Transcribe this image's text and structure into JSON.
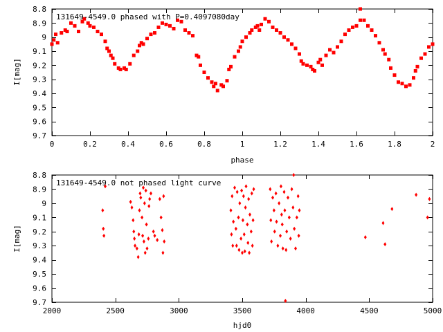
{
  "chart_data": [
    {
      "type": "scatter",
      "title": "131649-4549.0 phased with P=0.4097080day",
      "xlabel": "phase",
      "ylabel": "I[mag]",
      "xlim": [
        0,
        2
      ],
      "ylim": [
        8.8,
        9.7
      ],
      "y_inverted": true,
      "x_ticks": [
        "0",
        "0.2",
        "0.4",
        "0.6",
        "0.8",
        "1",
        "1.2",
        "1.4",
        "1.6",
        "1.8",
        "2"
      ],
      "y_ticks": [
        "8.8",
        "8.9",
        "9",
        "9.1",
        "9.2",
        "9.3",
        "9.4",
        "9.5",
        "9.6",
        "9.7"
      ],
      "marker_color": "#ff0000",
      "points": [
        [
          0.0,
          9.05
        ],
        [
          0.01,
          9.02
        ],
        [
          0.02,
          8.98
        ],
        [
          0.03,
          9.04
        ],
        [
          0.05,
          8.97
        ],
        [
          0.07,
          8.95
        ],
        [
          0.08,
          8.96
        ],
        [
          0.1,
          8.9
        ],
        [
          0.12,
          8.92
        ],
        [
          0.14,
          8.96
        ],
        [
          0.16,
          8.89
        ],
        [
          0.17,
          8.87
        ],
        [
          0.19,
          8.9
        ],
        [
          0.2,
          8.92
        ],
        [
          0.22,
          8.93
        ],
        [
          0.24,
          8.96
        ],
        [
          0.26,
          8.98
        ],
        [
          0.28,
          9.03
        ],
        [
          0.29,
          9.08
        ],
        [
          0.3,
          9.1
        ],
        [
          0.31,
          9.13
        ],
        [
          0.32,
          9.15
        ],
        [
          0.33,
          9.19
        ],
        [
          0.35,
          9.22
        ],
        [
          0.36,
          9.23
        ],
        [
          0.38,
          9.22
        ],
        [
          0.39,
          9.23
        ],
        [
          0.41,
          9.19
        ],
        [
          0.43,
          9.13
        ],
        [
          0.45,
          9.1
        ],
        [
          0.46,
          9.06
        ],
        [
          0.47,
          9.04
        ],
        [
          0.48,
          9.05
        ],
        [
          0.5,
          9.01
        ],
        [
          0.52,
          8.98
        ],
        [
          0.54,
          8.97
        ],
        [
          0.56,
          8.93
        ],
        [
          0.58,
          8.9
        ],
        [
          0.6,
          8.91
        ],
        [
          0.62,
          8.92
        ],
        [
          0.64,
          8.94
        ],
        [
          0.66,
          8.88
        ],
        [
          0.68,
          8.89
        ],
        [
          0.7,
          8.95
        ],
        [
          0.72,
          8.97
        ],
        [
          0.74,
          8.99
        ],
        [
          0.76,
          9.13
        ],
        [
          0.77,
          9.14
        ],
        [
          0.78,
          9.2
        ],
        [
          0.8,
          9.25
        ],
        [
          0.82,
          9.29
        ],
        [
          0.84,
          9.32
        ],
        [
          0.85,
          9.35
        ],
        [
          0.86,
          9.33
        ],
        [
          0.87,
          9.38
        ],
        [
          0.89,
          9.34
        ],
        [
          0.9,
          9.35
        ],
        [
          0.92,
          9.31
        ],
        [
          0.93,
          9.23
        ],
        [
          0.94,
          9.21
        ],
        [
          0.96,
          9.14
        ],
        [
          0.98,
          9.1
        ],
        [
          0.99,
          9.07
        ],
        [
          1.0,
          9.03
        ],
        [
          1.02,
          9.0
        ],
        [
          1.04,
          8.97
        ],
        [
          1.05,
          8.95
        ],
        [
          1.07,
          8.93
        ],
        [
          1.08,
          8.92
        ],
        [
          1.09,
          8.95
        ],
        [
          1.1,
          8.91
        ],
        [
          1.12,
          8.87
        ],
        [
          1.14,
          8.89
        ],
        [
          1.16,
          8.93
        ],
        [
          1.18,
          8.95
        ],
        [
          1.2,
          8.97
        ],
        [
          1.22,
          9.0
        ],
        [
          1.24,
          9.02
        ],
        [
          1.26,
          9.05
        ],
        [
          1.28,
          9.08
        ],
        [
          1.3,
          9.12
        ],
        [
          1.31,
          9.17
        ],
        [
          1.32,
          9.19
        ],
        [
          1.34,
          9.2
        ],
        [
          1.36,
          9.21
        ],
        [
          1.37,
          9.23
        ],
        [
          1.38,
          9.24
        ],
        [
          1.4,
          9.18
        ],
        [
          1.41,
          9.16
        ],
        [
          1.42,
          9.2
        ],
        [
          1.44,
          9.13
        ],
        [
          1.46,
          9.09
        ],
        [
          1.48,
          9.11
        ],
        [
          1.5,
          9.07
        ],
        [
          1.52,
          9.03
        ],
        [
          1.54,
          8.98
        ],
        [
          1.56,
          8.95
        ],
        [
          1.58,
          8.93
        ],
        [
          1.6,
          8.92
        ],
        [
          1.62,
          8.8
        ],
        [
          1.62,
          8.88
        ],
        [
          1.64,
          8.88
        ],
        [
          1.66,
          8.92
        ],
        [
          1.68,
          8.95
        ],
        [
          1.7,
          8.99
        ],
        [
          1.72,
          9.04
        ],
        [
          1.74,
          9.09
        ],
        [
          1.75,
          9.12
        ],
        [
          1.77,
          9.16
        ],
        [
          1.78,
          9.22
        ],
        [
          1.8,
          9.27
        ],
        [
          1.82,
          9.32
        ],
        [
          1.84,
          9.33
        ],
        [
          1.86,
          9.35
        ],
        [
          1.88,
          9.34
        ],
        [
          1.9,
          9.29
        ],
        [
          1.91,
          9.24
        ],
        [
          1.92,
          9.21
        ],
        [
          1.94,
          9.15
        ],
        [
          1.96,
          9.12
        ],
        [
          1.98,
          9.07
        ],
        [
          2.0,
          9.05
        ]
      ]
    },
    {
      "type": "scatter",
      "title": "131649-4549.0 not phased light curve",
      "xlabel": "hjd0",
      "ylabel": "I[mag]",
      "xlim": [
        2000,
        5000
      ],
      "ylim": [
        8.8,
        9.7
      ],
      "y_inverted": true,
      "x_ticks": [
        "2000",
        "2500",
        "3000",
        "3500",
        "4000",
        "4500",
        "5000"
      ],
      "y_ticks": [
        "8.8",
        "8.9",
        "9",
        "9.1",
        "9.2",
        "9.3",
        "9.4",
        "9.5",
        "9.6",
        "9.7"
      ],
      "marker_color": "#ff0000",
      "points": [
        [
          2400,
          9.05
        ],
        [
          2405,
          9.18
        ],
        [
          2410,
          9.23
        ],
        [
          2420,
          8.88
        ],
        [
          2620,
          8.99
        ],
        [
          2630,
          9.03
        ],
        [
          2640,
          9.12
        ],
        [
          2645,
          9.2
        ],
        [
          2650,
          9.25
        ],
        [
          2655,
          9.3
        ],
        [
          2670,
          9.32
        ],
        [
          2680,
          9.38
        ],
        [
          2685,
          9.22
        ],
        [
          2690,
          9.05
        ],
        [
          2695,
          8.93
        ],
        [
          2700,
          8.96
        ],
        [
          2710,
          9.1
        ],
        [
          2715,
          9.23
        ],
        [
          2720,
          8.89
        ],
        [
          2725,
          9.27
        ],
        [
          2730,
          9.0
        ],
        [
          2735,
          9.35
        ],
        [
          2740,
          8.91
        ],
        [
          2745,
          9.15
        ],
        [
          2750,
          9.32
        ],
        [
          2760,
          9.25
        ],
        [
          2765,
          9.02
        ],
        [
          2770,
          8.97
        ],
        [
          2780,
          8.93
        ],
        [
          2800,
          9.2
        ],
        [
          2810,
          9.23
        ],
        [
          2830,
          9.26
        ],
        [
          2850,
          8.97
        ],
        [
          2860,
          9.1
        ],
        [
          2870,
          9.19
        ],
        [
          2875,
          9.35
        ],
        [
          2880,
          8.95
        ],
        [
          2885,
          9.27
        ],
        [
          3410,
          9.05
        ],
        [
          3415,
          9.22
        ],
        [
          3420,
          8.95
        ],
        [
          3425,
          9.3
        ],
        [
          3430,
          9.13
        ],
        [
          3440,
          8.89
        ],
        [
          3450,
          9.18
        ],
        [
          3455,
          9.3
        ],
        [
          3460,
          8.92
        ],
        [
          3470,
          9.1
        ],
        [
          3475,
          9.33
        ],
        [
          3480,
          9.0
        ],
        [
          3490,
          9.25
        ],
        [
          3495,
          8.91
        ],
        [
          3500,
          9.35
        ],
        [
          3505,
          9.12
        ],
        [
          3510,
          8.95
        ],
        [
          3515,
          9.22
        ],
        [
          3520,
          9.34
        ],
        [
          3525,
          9.03
        ],
        [
          3530,
          8.88
        ],
        [
          3540,
          9.15
        ],
        [
          3545,
          9.28
        ],
        [
          3550,
          8.97
        ],
        [
          3555,
          9.35
        ],
        [
          3560,
          9.08
        ],
        [
          3570,
          9.2
        ],
        [
          3575,
          8.93
        ],
        [
          3580,
          9.3
        ],
        [
          3585,
          9.12
        ],
        [
          3590,
          8.9
        ],
        [
          3720,
          8.9
        ],
        [
          3725,
          9.12
        ],
        [
          3730,
          9.27
        ],
        [
          3740,
          8.96
        ],
        [
          3750,
          9.05
        ],
        [
          3755,
          9.2
        ],
        [
          3765,
          8.93
        ],
        [
          3770,
          9.13
        ],
        [
          3780,
          9.3
        ],
        [
          3790,
          9.0
        ],
        [
          3800,
          9.23
        ],
        [
          3805,
          8.88
        ],
        [
          3810,
          9.08
        ],
        [
          3815,
          9.15
        ],
        [
          3820,
          9.32
        ],
        [
          3830,
          8.92
        ],
        [
          3835,
          9.05
        ],
        [
          3840,
          9.69
        ],
        [
          3845,
          9.33
        ],
        [
          3850,
          9.2
        ],
        [
          3860,
          8.96
        ],
        [
          3870,
          9.1
        ],
        [
          3880,
          9.25
        ],
        [
          3890,
          8.9
        ],
        [
          3900,
          9.03
        ],
        [
          3905,
          8.8
        ],
        [
          3910,
          9.18
        ],
        [
          3920,
          9.32
        ],
        [
          3930,
          9.1
        ],
        [
          3940,
          8.95
        ],
        [
          3945,
          9.23
        ],
        [
          3950,
          9.05
        ],
        [
          4470,
          9.24
        ],
        [
          4610,
          9.14
        ],
        [
          4625,
          9.29
        ],
        [
          4680,
          9.04
        ],
        [
          4870,
          8.94
        ],
        [
          4960,
          9.1
        ],
        [
          4975,
          8.97
        ]
      ]
    }
  ]
}
